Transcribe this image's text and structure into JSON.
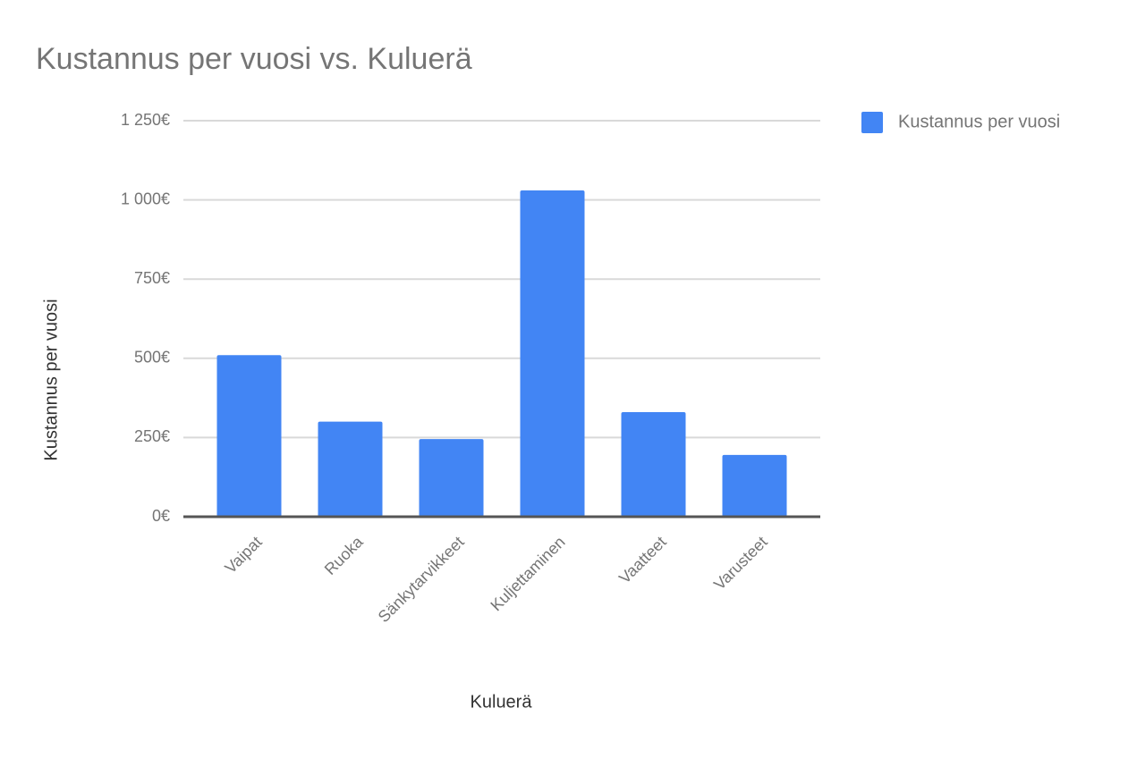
{
  "chart_data": {
    "type": "bar",
    "title": "Kustannus per vuosi vs. Kuluerä",
    "x_label": "Kuluerä",
    "y_label": "Kustannus per vuosi",
    "categories": [
      "Vaipat",
      "Ruoka",
      "Sänkytarvikkeet",
      "Kuljettaminen",
      "Vaatteet",
      "Varusteet"
    ],
    "series": [
      {
        "name": "Kustannus per vuosi",
        "color": "#4285f4",
        "values": [
          510,
          300,
          245,
          1030,
          330,
          195
        ]
      }
    ],
    "ylim": [
      0,
      1250
    ],
    "yticks": [
      {
        "value": 0,
        "label": "0€"
      },
      {
        "value": 250,
        "label": "250€"
      },
      {
        "value": 500,
        "label": "500€"
      },
      {
        "value": 750,
        "label": "750€"
      },
      {
        "value": 1000,
        "label": "1 000€"
      },
      {
        "value": 1250,
        "label": "1 250€"
      }
    ],
    "grid": true,
    "legend": "right"
  }
}
